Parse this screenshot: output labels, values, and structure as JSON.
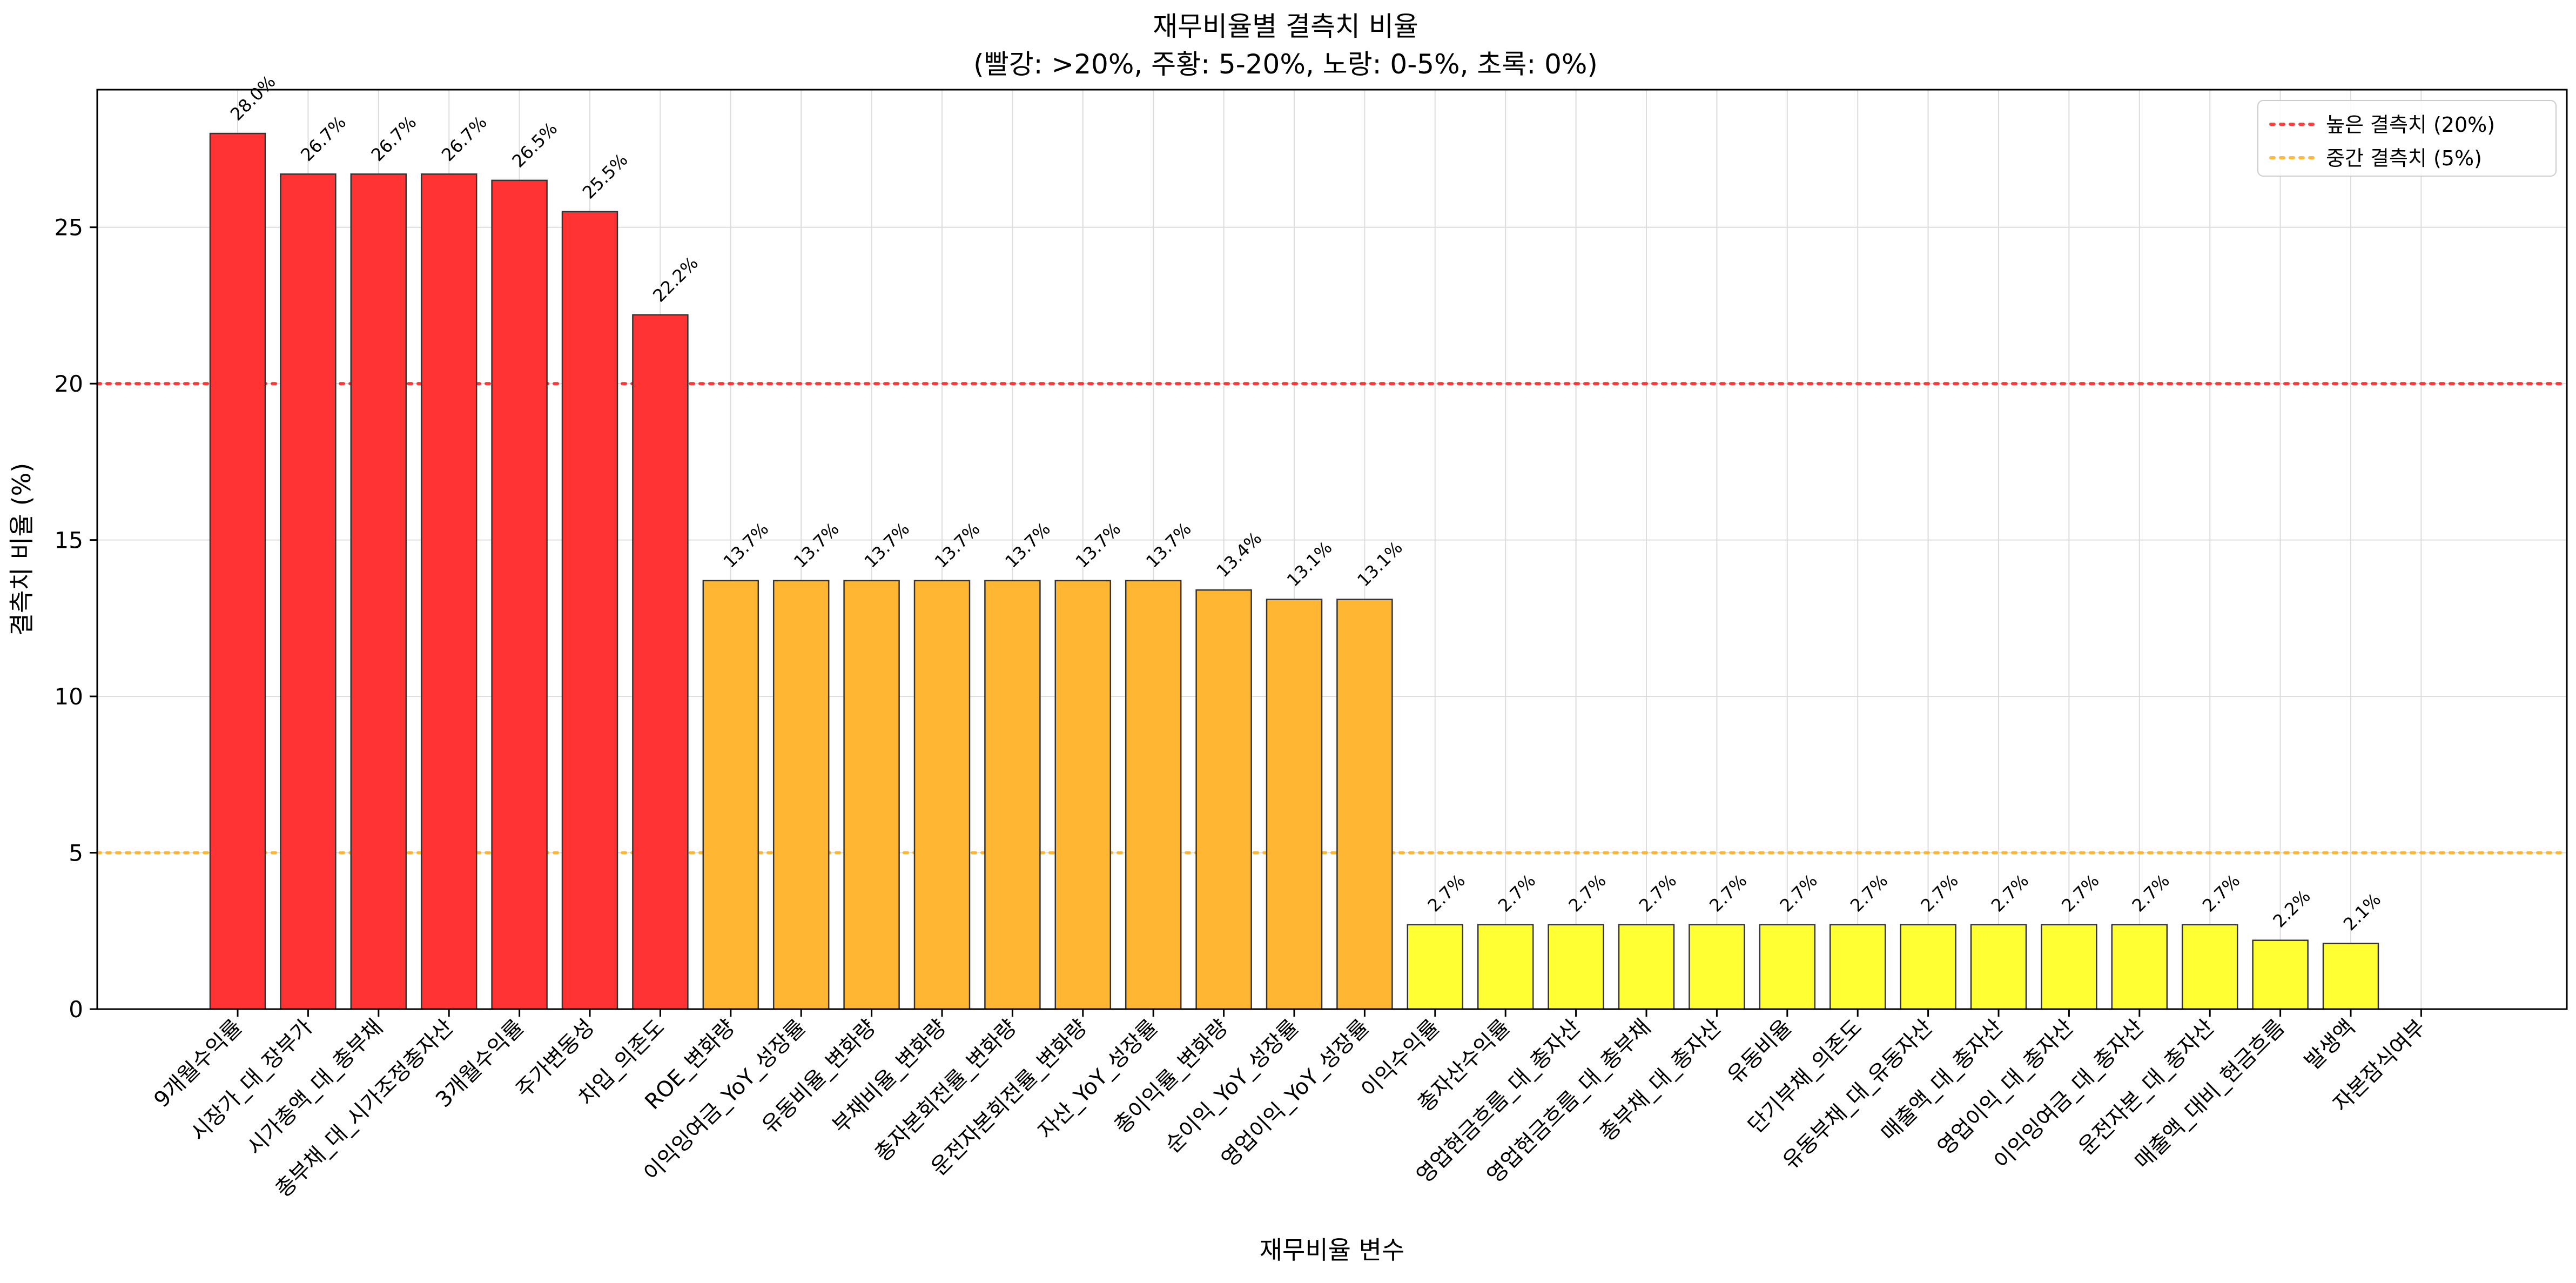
{
  "chart_data": {
    "type": "bar",
    "title": "재무비율별 결측치 비율",
    "subtitle": "(빨강: >20%, 주황: 5-20%, 노랑: 0-5%, 초록: 0%)",
    "xlabel": "재무비율 변수",
    "ylabel": "결측치 비율 (%)",
    "ylim": [
      0,
      29.4
    ],
    "yticks": [
      0,
      5,
      10,
      15,
      20,
      25
    ],
    "grid": true,
    "legend_position": "top-right",
    "categories": [
      "9개월수익률",
      "시장가_대_장부가",
      "시가총액_대_총부채",
      "총부채_대_시가조정총자산",
      "3개월수익률",
      "주가변동성",
      "차입_의존도",
      "ROE_변화량",
      "이익잉여금_YoY_성장률",
      "유동비율_변화량",
      "부채비율_변화량",
      "총자본회전률_변화량",
      "운전자본회전률_변화량",
      "자산_YoY_성장률",
      "총이익률_변화량",
      "순이익_YoY_성장률",
      "영업이익_YoY_성장률",
      "이익수익률",
      "총자산수익률",
      "영업현금흐름_대_총자산",
      "영업현금흐름_대_총부채",
      "총부채_대_총자산",
      "유동비율",
      "단기부채_의존도",
      "유동부채_대_유동자산",
      "매출액_대_총자산",
      "영업이익_대_총자산",
      "이익잉여금_대_총자산",
      "운전자본_대_총자산",
      "매출액_대비_현금흐름",
      "발생액",
      "자본잠식여부"
    ],
    "values": [
      28.0,
      26.7,
      26.7,
      26.7,
      26.5,
      25.5,
      22.2,
      13.7,
      13.7,
      13.7,
      13.7,
      13.7,
      13.7,
      13.7,
      13.4,
      13.1,
      13.1,
      2.7,
      2.7,
      2.7,
      2.7,
      2.7,
      2.7,
      2.7,
      2.7,
      2.7,
      2.7,
      2.7,
      2.7,
      2.2,
      2.1,
      0
    ],
    "value_labels": [
      "28.0%",
      "26.7%",
      "26.7%",
      "26.7%",
      "26.5%",
      "25.5%",
      "22.2%",
      "13.7%",
      "13.7%",
      "13.7%",
      "13.7%",
      "13.7%",
      "13.7%",
      "13.7%",
      "13.4%",
      "13.1%",
      "13.1%",
      "2.7%",
      "2.7%",
      "2.7%",
      "2.7%",
      "2.7%",
      "2.7%",
      "2.7%",
      "2.7%",
      "2.7%",
      "2.7%",
      "2.7%",
      "2.7%",
      "2.2%",
      "2.1%",
      ""
    ],
    "thresholds": [
      {
        "name": "높은 결측치 (20%)",
        "value": 20,
        "color": "#ff0000"
      },
      {
        "name": "중간 결측치 (5%)",
        "value": 5,
        "color": "#ffa500"
      }
    ],
    "colors": {
      "high": "#ff3333",
      "medium": "#ffb733",
      "low": "#ffff33",
      "bar_edge": "#333333",
      "grid": "#dddddd",
      "axes": "#000000"
    }
  }
}
